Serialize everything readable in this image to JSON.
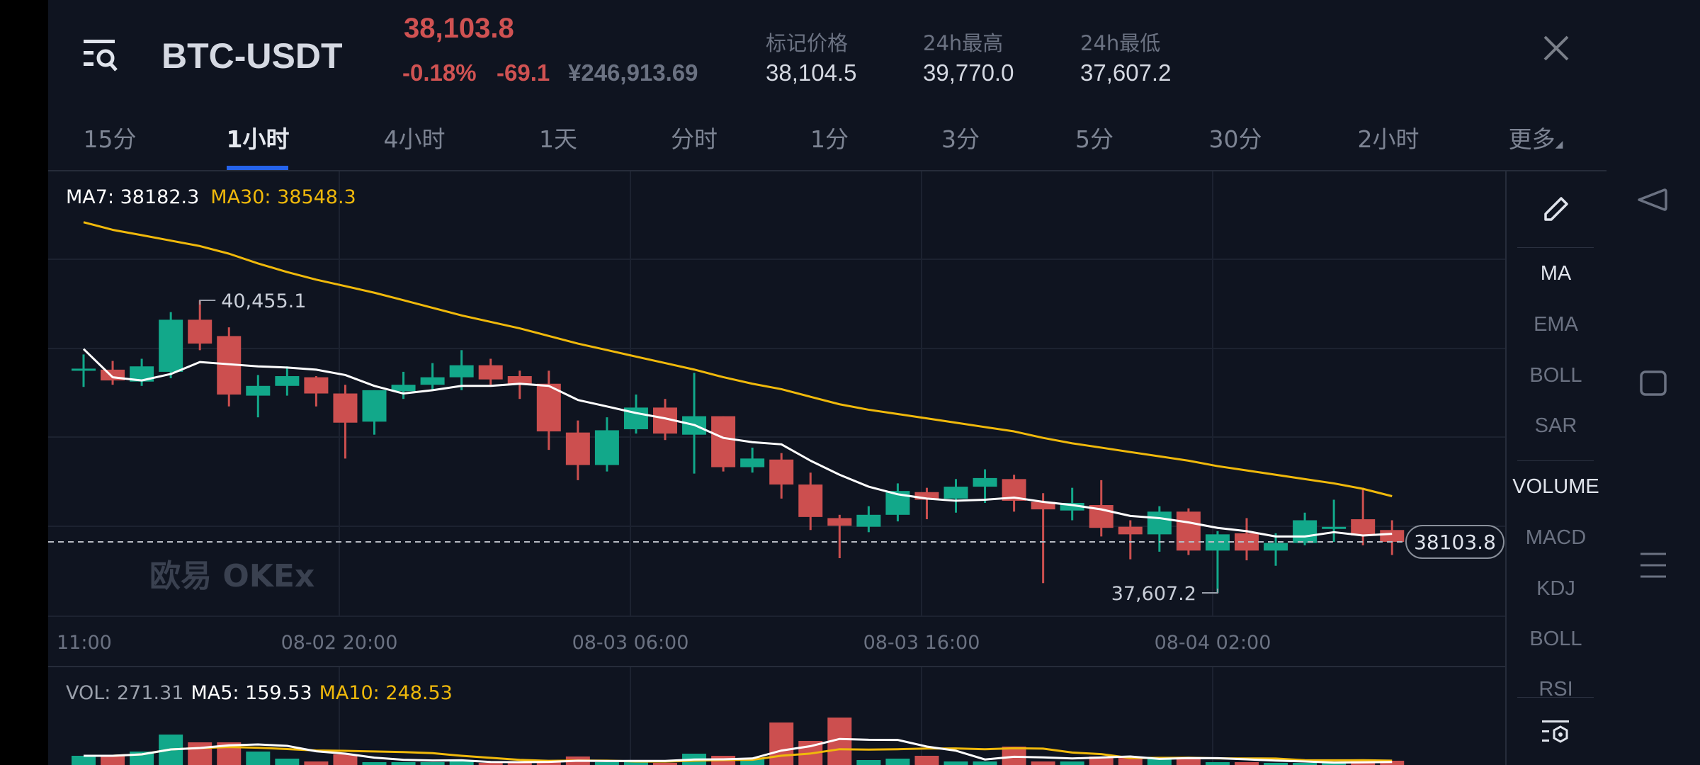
{
  "header": {
    "menu_icon": "menu-search-icon",
    "pair": "BTC-USDT",
    "last_price": "38,103.8",
    "change_percent": "-0.18%",
    "change_value": "-69.1",
    "cny_price": "¥246,913.69",
    "stats": [
      {
        "label": "标记价格",
        "value": "38,104.5"
      },
      {
        "label": "24h最高",
        "value": "39,770.0"
      },
      {
        "label": "24h最低",
        "value": "37,607.2"
      }
    ],
    "close_icon": "close-icon"
  },
  "tabs": [
    {
      "label": "15分",
      "active": false
    },
    {
      "label": "1小时",
      "active": true
    },
    {
      "label": "4小时",
      "active": false
    },
    {
      "label": "1天",
      "active": false
    },
    {
      "label": "分时",
      "active": false
    },
    {
      "label": "1分",
      "active": false
    },
    {
      "label": "3分",
      "active": false
    },
    {
      "label": "5分",
      "active": false
    },
    {
      "label": "30分",
      "active": false
    },
    {
      "label": "2小时",
      "active": false
    },
    {
      "label": "更多",
      "active": false
    }
  ],
  "sidebar": {
    "draw_icon": "pencil-icon",
    "main_indicators": [
      {
        "label": "MA",
        "active": true
      },
      {
        "label": "EMA",
        "active": false
      },
      {
        "label": "BOLL",
        "active": false
      },
      {
        "label": "SAR",
        "active": false
      }
    ],
    "sub_indicators": [
      {
        "label": "VOLUME",
        "active": true
      },
      {
        "label": "MACD",
        "active": false
      },
      {
        "label": "KDJ",
        "active": false
      },
      {
        "label": "BOLL",
        "active": false
      },
      {
        "label": "RSI",
        "active": false
      }
    ],
    "settings_icon": "indicator-settings-icon"
  },
  "android_nav": [
    "back-icon",
    "home-icon",
    "recents-icon"
  ],
  "watermark": "欧易 OKEx",
  "colors": {
    "up": "#12a88a",
    "down": "#cc4f4f",
    "ma_short": "#ffffff",
    "ma_long": "#f0b90b",
    "accent": "#2563eb",
    "background": "#0f1420"
  },
  "chart_data": [
    {
      "type": "candlestick",
      "legend": {
        "ma7_label": "MA7: 38182.3",
        "ma30_label": "MA30: 38548.3"
      },
      "x_ticks": [
        "11:00",
        "08-02 20:00",
        "08-03 06:00",
        "08-03 16:00",
        "08-04 02:00"
      ],
      "high_marker": "40,455.1",
      "low_marker": "37,607.2",
      "current_price": 38103.8,
      "current_price_label": "38103.8",
      "grid": true,
      "ylim": [
        37385,
        41711
      ],
      "ohlc": [
        [
          39780,
          39928,
          39612,
          39790
        ],
        [
          39780,
          39865,
          39633,
          39675
        ],
        [
          39664,
          39886,
          39622,
          39812
        ],
        [
          39759,
          40340,
          39696,
          40266
        ],
        [
          40266,
          40455.1,
          39970,
          40034
        ],
        [
          40107,
          40192,
          39422,
          39538
        ],
        [
          39527,
          39728,
          39316,
          39622
        ],
        [
          39622,
          39812,
          39527,
          39717
        ],
        [
          39706,
          39717,
          39422,
          39548
        ],
        [
          39548,
          39633,
          38915,
          39264
        ],
        [
          39274,
          39580,
          39147,
          39580
        ],
        [
          39570,
          39759,
          39495,
          39633
        ],
        [
          39633,
          39844,
          39580,
          39706
        ],
        [
          39706,
          39970,
          39580,
          39823
        ],
        [
          39823,
          39886,
          39633,
          39685
        ],
        [
          39717,
          39770,
          39495,
          39643
        ],
        [
          39643,
          39770,
          38999,
          39179
        ],
        [
          39168,
          39285,
          38704,
          38852
        ],
        [
          38852,
          39316,
          38789,
          39190
        ],
        [
          39200,
          39538,
          39158,
          39411
        ],
        [
          39411,
          39495,
          39095,
          39158
        ],
        [
          39147,
          39749,
          38768,
          39327
        ],
        [
          39327,
          39327,
          38789,
          38831
        ],
        [
          38831,
          39021,
          38778,
          38915
        ],
        [
          38905,
          38968,
          38525,
          38662
        ],
        [
          38662,
          38778,
          38219,
          38346
        ],
        [
          38335,
          38367,
          37945,
          38261
        ],
        [
          38251,
          38451,
          38198,
          38367
        ],
        [
          38367,
          38673,
          38303,
          38599
        ],
        [
          38588,
          38630,
          38324,
          38514
        ],
        [
          38525,
          38715,
          38388,
          38641
        ],
        [
          38641,
          38810,
          38483,
          38725
        ],
        [
          38715,
          38757,
          38398,
          38504
        ],
        [
          38493,
          38578,
          37702,
          38420
        ],
        [
          38409,
          38630,
          38314,
          38483
        ],
        [
          38462,
          38704,
          38156,
          38240
        ],
        [
          38251,
          38314,
          37934,
          38177
        ],
        [
          38177,
          38451,
          38008,
          38398
        ],
        [
          38398,
          38430,
          37976,
          38019
        ],
        [
          38019,
          38208,
          37607.2,
          38177
        ],
        [
          38187,
          38335,
          37924,
          38019
        ],
        [
          38019,
          38187,
          37871,
          38093
        ],
        [
          38093,
          38388,
          38071,
          38314
        ],
        [
          38240,
          38514,
          38103,
          38250
        ],
        [
          38324,
          38630,
          38071,
          38166
        ],
        [
          38219,
          38314,
          37976,
          38103.8
        ]
      ],
      "ma7": [
        39981,
        39706,
        39675,
        39738,
        39854,
        39833,
        39812,
        39801,
        39780,
        39728,
        39622,
        39548,
        39580,
        39622,
        39622,
        39643,
        39622,
        39485,
        39422,
        39358,
        39306,
        39242,
        39116,
        39074,
        39053,
        38894,
        38757,
        38641,
        38567,
        38525,
        38504,
        38514,
        38535,
        38493,
        38462,
        38420,
        38356,
        38335,
        38293,
        38240,
        38208,
        38156,
        38156,
        38198,
        38166,
        38182.3
      ],
      "ma30": [
        41215,
        41141,
        41089,
        41036,
        40983,
        40909,
        40814,
        40730,
        40656,
        40593,
        40529,
        40456,
        40382,
        40308,
        40245,
        40182,
        40108,
        40034,
        39971,
        39907,
        39844,
        39781,
        39707,
        39643,
        39590,
        39516,
        39443,
        39390,
        39348,
        39306,
        39264,
        39221,
        39179,
        39116,
        39063,
        39021,
        38978,
        38936,
        38894,
        38841,
        38799,
        38757,
        38715,
        38673,
        38620,
        38548.3
      ]
    },
    {
      "type": "bar",
      "legend": {
        "vol_label": "VOL: 271.31",
        "ma5_label": "MA5: 159.53",
        "ma10_label": "MA10: 248.53"
      },
      "volume": [
        585,
        585,
        855,
        1935,
        1440,
        1440,
        855,
        405,
        225,
        675,
        180,
        180,
        180,
        270,
        135,
        135,
        270,
        540,
        180,
        180,
        135,
        720,
        585,
        450,
        2700,
        1530,
        3015,
        315,
        405,
        585,
        225,
        225,
        1170,
        225,
        225,
        540,
        540,
        405,
        495,
        180,
        180,
        135,
        135,
        135,
        270,
        271.31
      ]
    }
  ]
}
